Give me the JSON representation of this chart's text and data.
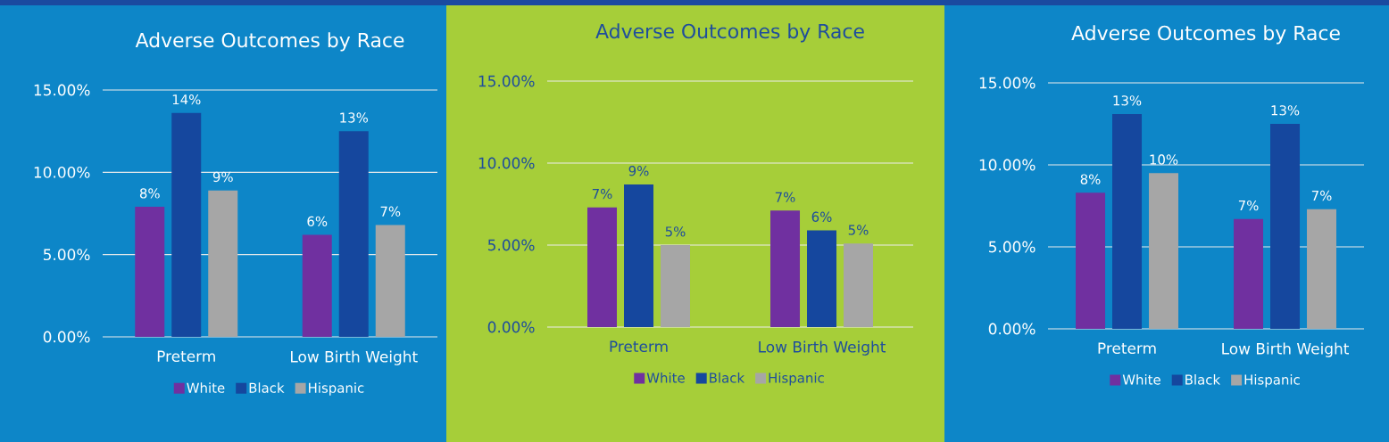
{
  "chart_data": [
    {
      "type": "bar",
      "title": "Adverse Outcomes by Race",
      "categories": [
        "Preterm",
        "Low Birth Weight"
      ],
      "ylim": [
        0,
        15
      ],
      "yticks": [
        {
          "value": 0,
          "label": "0.00%"
        },
        {
          "value": 5,
          "label": "5.00%"
        },
        {
          "value": 10,
          "label": "10.00%"
        },
        {
          "value": 15,
          "label": "15.00%"
        }
      ],
      "grid": "y",
      "legend": "bottom",
      "series": [
        {
          "name": "White",
          "color": "#7030a0",
          "values": [
            7.9,
            6.2
          ],
          "value_labels": [
            "8%",
            "6%"
          ]
        },
        {
          "name": "Black",
          "color": "#15479e",
          "values": [
            13.6,
            12.5
          ],
          "value_labels": [
            "14%",
            "13%"
          ]
        },
        {
          "name": "Hispanic",
          "color": "#a6a6a6",
          "values": [
            8.9,
            6.8
          ],
          "value_labels": [
            "9%",
            "7%"
          ]
        }
      ]
    },
    {
      "type": "bar",
      "title": "Adverse Outcomes by Race",
      "categories": [
        "Preterm",
        "Low Birth Weight"
      ],
      "ylim": [
        0,
        15
      ],
      "yticks": [
        {
          "value": 0,
          "label": "0.00%"
        },
        {
          "value": 5,
          "label": "5.00%"
        },
        {
          "value": 10,
          "label": "10.00%"
        },
        {
          "value": 15,
          "label": "15.00%"
        }
      ],
      "grid": "y",
      "legend": "bottom",
      "series": [
        {
          "name": "White",
          "color": "#7030a0",
          "values": [
            7.3,
            7.1
          ],
          "value_labels": [
            "7%",
            "7%"
          ]
        },
        {
          "name": "Black",
          "color": "#15479e",
          "values": [
            8.7,
            5.9
          ],
          "value_labels": [
            "9%",
            "6%"
          ]
        },
        {
          "name": "Hispanic",
          "color": "#a6a6a6",
          "values": [
            5.0,
            5.1
          ],
          "value_labels": [
            "5%",
            "5%"
          ]
        }
      ]
    },
    {
      "type": "bar",
      "title": "Adverse Outcomes by Race",
      "categories": [
        "Preterm",
        "Low Birth Weight"
      ],
      "ylim": [
        0,
        15
      ],
      "yticks": [
        {
          "value": 0,
          "label": "0.00%"
        },
        {
          "value": 5,
          "label": "5.00%"
        },
        {
          "value": 10,
          "label": "10.00%"
        },
        {
          "value": 15,
          "label": "15.00%"
        }
      ],
      "grid": "y",
      "legend": "bottom",
      "series": [
        {
          "name": "White",
          "color": "#7030a0",
          "values": [
            8.3,
            6.7
          ],
          "value_labels": [
            "8%",
            "7%"
          ]
        },
        {
          "name": "Black",
          "color": "#15479e",
          "values": [
            13.1,
            12.5
          ],
          "value_labels": [
            "13%",
            "13%"
          ]
        },
        {
          "name": "Hispanic",
          "color": "#a6a6a6",
          "values": [
            9.5,
            7.3
          ],
          "value_labels": [
            "10%",
            "7%"
          ]
        }
      ]
    }
  ]
}
